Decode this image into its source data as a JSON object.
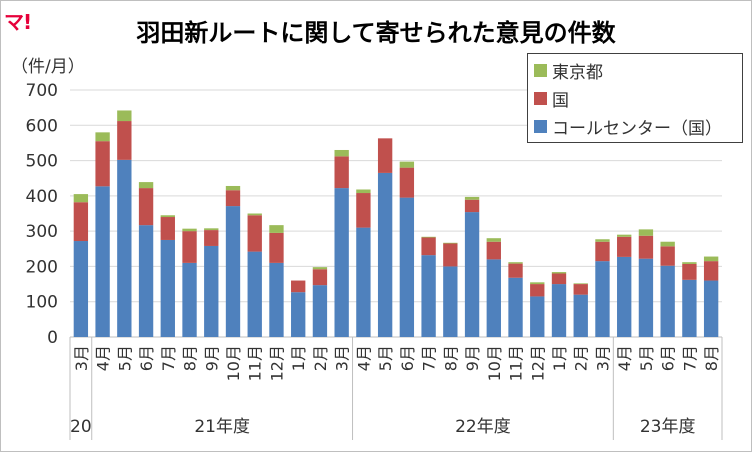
{
  "logo": "マ!",
  "chart_data": {
    "type": "bar",
    "stacked": true,
    "title": "羽田新ルートに関して寄せられた意見の件数",
    "ylabel": "（件/月）",
    "ylim": [
      0,
      700
    ],
    "yticks": [
      0,
      100,
      200,
      300,
      400,
      500,
      600,
      700
    ],
    "grid": true,
    "legend_position": "top-right",
    "categories": [
      "3月",
      "4月",
      "5月",
      "6月",
      "7月",
      "8月",
      "9月",
      "10月",
      "11月",
      "12月",
      "1月",
      "2月",
      "3月",
      "4月",
      "5月",
      "6月",
      "7月",
      "8月",
      "9月",
      "10月",
      "11月",
      "12月",
      "1月",
      "2月",
      "3月",
      "4月",
      "5月",
      "6月",
      "7月",
      "8月"
    ],
    "groups": [
      {
        "label": "20",
        "count": 1
      },
      {
        "label": "21年度",
        "count": 12
      },
      {
        "label": "22年度",
        "count": 12
      },
      {
        "label": "23年度",
        "count": 5
      }
    ],
    "series": [
      {
        "name": "コールセンター（国）",
        "color": "#4f81bd",
        "values": [
          272,
          427,
          502,
          317,
          275,
          210,
          258,
          371,
          242,
          210,
          127,
          147,
          422,
          310,
          465,
          395,
          232,
          200,
          354,
          220,
          168,
          115,
          150,
          120,
          215,
          227,
          222,
          202,
          162,
          160
        ]
      },
      {
        "name": "国",
        "color": "#c0504d",
        "values": [
          110,
          128,
          110,
          105,
          65,
          90,
          45,
          45,
          103,
          85,
          33,
          45,
          90,
          98,
          98,
          85,
          50,
          65,
          35,
          50,
          40,
          35,
          30,
          30,
          55,
          57,
          65,
          55,
          45,
          55
        ]
      },
      {
        "name": "東京都",
        "color": "#9bbb59",
        "values": [
          23,
          25,
          30,
          17,
          5,
          7,
          5,
          12,
          5,
          22,
          0,
          6,
          18,
          10,
          0,
          17,
          2,
          2,
          8,
          10,
          4,
          5,
          4,
          2,
          7,
          6,
          18,
          13,
          5,
          13
        ]
      }
    ]
  }
}
